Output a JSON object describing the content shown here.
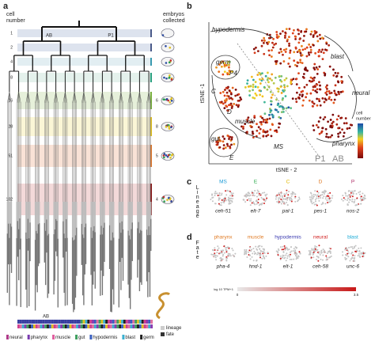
{
  "panel_a": {
    "label": "a",
    "cell_number_title": [
      "cell",
      "number"
    ],
    "embryos_title": [
      "embryos",
      "collected"
    ],
    "cell_numbers": [
      "1",
      "2",
      "4",
      "8",
      "16",
      "28",
      "51",
      "102"
    ],
    "embryo_counts": [
      "6",
      "8",
      "5",
      "4"
    ],
    "branches": [
      "AB",
      "P1"
    ],
    "lineage_label": "AB",
    "legend": [
      "neural",
      "pharynx",
      "muscle",
      "gut",
      "hypodermis",
      "blast",
      "germ"
    ],
    "key": [
      "lineage",
      "fate"
    ]
  },
  "panel_b": {
    "label": "b",
    "regions": [
      "hypodermis",
      "blast",
      "germ",
      "P4",
      "C",
      "D",
      "muscle",
      "neural",
      "pharynx",
      "gut",
      "E",
      "MS"
    ],
    "x_axis": "tSNE - 2",
    "y_axis": "tSNE -1",
    "lineage_marks": [
      "P1",
      "AB"
    ],
    "colorbar_title": [
      "cell",
      "number"
    ]
  },
  "panel_c": {
    "label": "c",
    "side": "Lineage",
    "headers": [
      "MS",
      "E",
      "C",
      "D",
      "P"
    ],
    "genes": [
      "ceh-51",
      "elt-7",
      "pal-1",
      "pes-1",
      "nos-2"
    ]
  },
  "panel_d": {
    "label": "d",
    "side": "Fate",
    "headers": [
      "pharynx",
      "muscle",
      "hypodermis",
      "neural",
      "blast"
    ],
    "genes": [
      "pha-4",
      "hnd-1",
      "elt-1",
      "ceh-58",
      "unc-6"
    ],
    "colorbar_title": "log 10 TPM+1",
    "colorbar_ticks": [
      "0",
      "3.5"
    ]
  }
}
